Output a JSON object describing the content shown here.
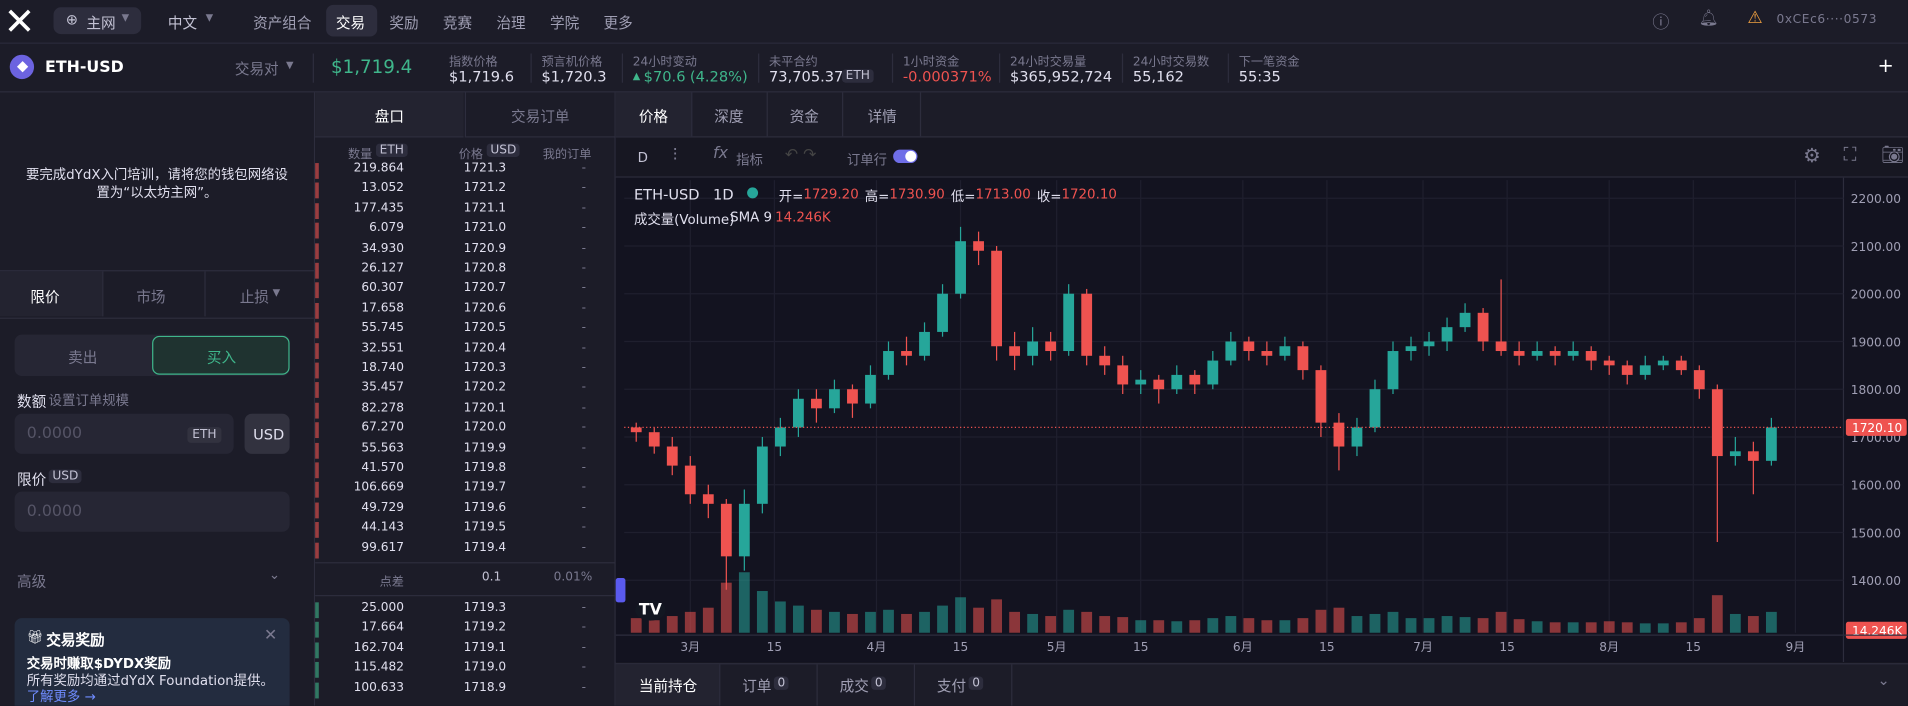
{
  "header": {
    "network": "主网",
    "language": "中文",
    "nav": [
      "资产组合",
      "交易",
      "奖励",
      "竞赛",
      "治理",
      "学院",
      "更多"
    ],
    "address": "0xCEc6····0573"
  },
  "market": {
    "symbol": "ETH-USD",
    "pair_label": "交易对",
    "price": "$1,719.4",
    "stats": [
      {
        "label": "指数价格",
        "value": "$1,719.6"
      },
      {
        "label": "预言机价格",
        "value": "$1,720.3"
      },
      {
        "label": "24小时变动",
        "value": "$70.6",
        "extra": "(4.28%)"
      },
      {
        "label": "未平合约",
        "value": "73,705.37",
        "unit": "ETH"
      },
      {
        "label": "1小时资金",
        "value": "-0.000371%"
      },
      {
        "label": "24小时交易量",
        "value": "$365,952,724"
      },
      {
        "label": "24小时交易数",
        "value": "55,162"
      },
      {
        "label": "下一笔资金",
        "value": "55:35"
      }
    ]
  },
  "order_form": {
    "notice": "要完成dYdX入门培训，请将您的钱包网络设置为“以太坊主网”。",
    "tabs": [
      "限价",
      "市场",
      "止损"
    ],
    "sides": [
      "卖出",
      "买入"
    ],
    "amount_label": "数额",
    "amount_hint": "设置订单规模",
    "amount_placeholder": "0.0000",
    "amount_unit": "ETH",
    "unit_toggle": "USD",
    "limit_label": "限价",
    "limit_unit": "USD",
    "limit_placeholder": "0.0000",
    "advanced": "高级",
    "reward": {
      "title": "交易奖励",
      "headline": "交易时赚取$DYDX奖励",
      "body": "所有奖励均通过dYdX Foundation提供。",
      "link": "了解更多 →"
    }
  },
  "orderbook": {
    "tabs": [
      "盘口",
      "交易订单"
    ],
    "size_label": "数量",
    "size_unit": "ETH",
    "price_label": "价格",
    "price_unit": "USD",
    "mine_label": "我的订单",
    "empty_mark": "-",
    "asks": [
      [
        "219.864",
        "1721.3"
      ],
      [
        "13.052",
        "1721.2"
      ],
      [
        "177.435",
        "1721.1"
      ],
      [
        "6.079",
        "1721.0"
      ],
      [
        "34.930",
        "1720.9"
      ],
      [
        "26.127",
        "1720.8"
      ],
      [
        "60.307",
        "1720.7"
      ],
      [
        "17.658",
        "1720.6"
      ],
      [
        "55.745",
        "1720.5"
      ],
      [
        "32.551",
        "1720.4"
      ],
      [
        "18.740",
        "1720.3"
      ],
      [
        "35.457",
        "1720.2"
      ],
      [
        "82.278",
        "1720.1"
      ],
      [
        "67.270",
        "1720.0"
      ],
      [
        "55.563",
        "1719.9"
      ],
      [
        "41.570",
        "1719.8"
      ],
      [
        "106.669",
        "1719.7"
      ],
      [
        "49.729",
        "1719.6"
      ],
      [
        "44.143",
        "1719.5"
      ],
      [
        "99.617",
        "1719.4"
      ]
    ],
    "spread_label": "点差",
    "spread": "0.1",
    "spread_pct": "0.01%",
    "bids": [
      [
        "25.000",
        "1719.3"
      ],
      [
        "17.664",
        "1719.2"
      ],
      [
        "162.704",
        "1719.1"
      ],
      [
        "115.482",
        "1719.0"
      ],
      [
        "100.633",
        "1718.9"
      ]
    ]
  },
  "chart_tabs": [
    "价格",
    "深度",
    "资金",
    "详情"
  ],
  "toolbar": {
    "interval": "D",
    "indicators": "指标",
    "order_lines": "订单行"
  },
  "price_chart": {
    "type": "candlestick",
    "symbol": "ETH-USD",
    "interval": "1D",
    "legend": [
      {
        "label": "开=",
        "value": "1729.20"
      },
      {
        "label": "高=",
        "value": "1730.90"
      },
      {
        "label": "低=",
        "value": "1713.00"
      },
      {
        "label": "收=",
        "value": "1720.10"
      }
    ],
    "volume_label": "成交量(Volume)",
    "sma_label": "SMA 9",
    "sma_value": "14.246K",
    "last_price": {
      "value": 1720.1,
      "label": "1720.10"
    },
    "volume_tag": "14.246K",
    "up_color": "#26a69a",
    "down_color": "#ef5350",
    "ylim": [
      1290,
      2238
    ],
    "xlim": [
      -2,
      201
    ],
    "volume_max": 70,
    "yticks": [
      {
        "value": 2200,
        "label": "2200.00"
      },
      {
        "value": 2100,
        "label": "2100.00"
      },
      {
        "value": 2000,
        "label": "2000.00"
      },
      {
        "value": 1900,
        "label": "1900.00"
      },
      {
        "value": 1800,
        "label": "1800.00"
      },
      {
        "value": 1700,
        "label": "1700.00"
      },
      {
        "value": 1600,
        "label": "1600.00"
      },
      {
        "value": 1500,
        "label": "1500.00"
      },
      {
        "value": 1400,
        "label": "1400.00"
      }
    ],
    "xticks": [
      {
        "value": 9,
        "label": "3月"
      },
      {
        "value": 23,
        "label": "15"
      },
      {
        "value": 40,
        "label": "4月"
      },
      {
        "value": 54,
        "label": "15"
      },
      {
        "value": 70,
        "label": "5月"
      },
      {
        "value": 84,
        "label": "15"
      },
      {
        "value": 101,
        "label": "6月"
      },
      {
        "value": 115,
        "label": "15"
      },
      {
        "value": 131,
        "label": "7月"
      },
      {
        "value": 145,
        "label": "15"
      },
      {
        "value": 162,
        "label": "8月"
      },
      {
        "value": 176,
        "label": "15"
      },
      {
        "value": 193,
        "label": "9月"
      }
    ],
    "candles": [
      {
        "x": 0,
        "ohlc": [
          1720,
          1730,
          1690,
          1710
        ],
        "volume": 14
      },
      {
        "x": 3,
        "ohlc": [
          1710,
          1720,
          1665,
          1680
        ],
        "volume": 12
      },
      {
        "x": 6,
        "ohlc": [
          1680,
          1700,
          1620,
          1640
        ],
        "volume": 16
      },
      {
        "x": 9,
        "ohlc": [
          1640,
          1660,
          1560,
          1580
        ],
        "volume": 20
      },
      {
        "x": 12,
        "ohlc": [
          1580,
          1600,
          1530,
          1560
        ],
        "volume": 24
      },
      {
        "x": 15,
        "ohlc": [
          1560,
          1570,
          1380,
          1450
        ],
        "volume": 48
      },
      {
        "x": 18,
        "ohlc": [
          1450,
          1590,
          1420,
          1560
        ],
        "volume": 58
      },
      {
        "x": 21,
        "ohlc": [
          1560,
          1700,
          1540,
          1680
        ],
        "volume": 40
      },
      {
        "x": 24,
        "ohlc": [
          1680,
          1740,
          1660,
          1720
        ],
        "volume": 30
      },
      {
        "x": 27,
        "ohlc": [
          1720,
          1800,
          1700,
          1780
        ],
        "volume": 26
      },
      {
        "x": 30,
        "ohlc": [
          1780,
          1800,
          1730,
          1760
        ],
        "volume": 22
      },
      {
        "x": 33,
        "ohlc": [
          1760,
          1820,
          1750,
          1800
        ],
        "volume": 20
      },
      {
        "x": 36,
        "ohlc": [
          1800,
          1810,
          1740,
          1770
        ],
        "volume": 18
      },
      {
        "x": 39,
        "ohlc": [
          1770,
          1850,
          1760,
          1830
        ],
        "volume": 20
      },
      {
        "x": 42,
        "ohlc": [
          1830,
          1900,
          1820,
          1880
        ],
        "volume": 22
      },
      {
        "x": 45,
        "ohlc": [
          1880,
          1910,
          1850,
          1870
        ],
        "volume": 18
      },
      {
        "x": 48,
        "ohlc": [
          1870,
          1940,
          1860,
          1920
        ],
        "volume": 20
      },
      {
        "x": 51,
        "ohlc": [
          1920,
          2020,
          1910,
          2000
        ],
        "volume": 26
      },
      {
        "x": 54,
        "ohlc": [
          2000,
          2140,
          1990,
          2110
        ],
        "volume": 34
      },
      {
        "x": 57,
        "ohlc": [
          2110,
          2130,
          2060,
          2090
        ],
        "volume": 24
      },
      {
        "x": 60,
        "ohlc": [
          2090,
          2100,
          1860,
          1890
        ],
        "volume": 32
      },
      {
        "x": 63,
        "ohlc": [
          1890,
          1920,
          1840,
          1870
        ],
        "volume": 20
      },
      {
        "x": 66,
        "ohlc": [
          1870,
          1930,
          1850,
          1900
        ],
        "volume": 18
      },
      {
        "x": 69,
        "ohlc": [
          1900,
          1920,
          1860,
          1880
        ],
        "volume": 16
      },
      {
        "x": 72,
        "ohlc": [
          1880,
          2020,
          1870,
          2000
        ],
        "volume": 22
      },
      {
        "x": 75,
        "ohlc": [
          2000,
          2010,
          1850,
          1870
        ],
        "volume": 20
      },
      {
        "x": 78,
        "ohlc": [
          1870,
          1890,
          1830,
          1850
        ],
        "volume": 16
      },
      {
        "x": 81,
        "ohlc": [
          1850,
          1870,
          1790,
          1810
        ],
        "volume": 15
      },
      {
        "x": 84,
        "ohlc": [
          1810,
          1840,
          1790,
          1820
        ],
        "volume": 12
      },
      {
        "x": 87,
        "ohlc": [
          1820,
          1830,
          1770,
          1800
        ],
        "volume": 12
      },
      {
        "x": 90,
        "ohlc": [
          1800,
          1850,
          1790,
          1830
        ],
        "volume": 11
      },
      {
        "x": 93,
        "ohlc": [
          1830,
          1840,
          1790,
          1810
        ],
        "volume": 12
      },
      {
        "x": 96,
        "ohlc": [
          1810,
          1880,
          1800,
          1860
        ],
        "volume": 14
      },
      {
        "x": 99,
        "ohlc": [
          1860,
          1920,
          1850,
          1900
        ],
        "volume": 16
      },
      {
        "x": 102,
        "ohlc": [
          1900,
          1910,
          1860,
          1880
        ],
        "volume": 14
      },
      {
        "x": 105,
        "ohlc": [
          1880,
          1900,
          1850,
          1870
        ],
        "volume": 12
      },
      {
        "x": 108,
        "ohlc": [
          1870,
          1910,
          1860,
          1890
        ],
        "volume": 12
      },
      {
        "x": 111,
        "ohlc": [
          1890,
          1900,
          1820,
          1840
        ],
        "volume": 14
      },
      {
        "x": 114,
        "ohlc": [
          1840,
          1850,
          1700,
          1730
        ],
        "volume": 22
      },
      {
        "x": 117,
        "ohlc": [
          1730,
          1750,
          1630,
          1680
        ],
        "volume": 24
      },
      {
        "x": 120,
        "ohlc": [
          1680,
          1740,
          1660,
          1720
        ],
        "volume": 16
      },
      {
        "x": 123,
        "ohlc": [
          1720,
          1820,
          1710,
          1800
        ],
        "volume": 18
      },
      {
        "x": 126,
        "ohlc": [
          1800,
          1900,
          1790,
          1880
        ],
        "volume": 20
      },
      {
        "x": 129,
        "ohlc": [
          1880,
          1910,
          1860,
          1890
        ],
        "volume": 14
      },
      {
        "x": 132,
        "ohlc": [
          1890,
          1920,
          1870,
          1900
        ],
        "volume": 14
      },
      {
        "x": 135,
        "ohlc": [
          1900,
          1950,
          1880,
          1930
        ],
        "volume": 16
      },
      {
        "x": 138,
        "ohlc": [
          1930,
          1980,
          1920,
          1960
        ],
        "volume": 15
      },
      {
        "x": 141,
        "ohlc": [
          1960,
          1970,
          1880,
          1900
        ],
        "volume": 14
      },
      {
        "x": 144,
        "ohlc": [
          1900,
          2030,
          1870,
          1880
        ],
        "volume": 20
      },
      {
        "x": 147,
        "ohlc": [
          1880,
          1900,
          1850,
          1870
        ],
        "volume": 13
      },
      {
        "x": 150,
        "ohlc": [
          1870,
          1900,
          1860,
          1880
        ],
        "volume": 11
      },
      {
        "x": 153,
        "ohlc": [
          1880,
          1890,
          1850,
          1870
        ],
        "volume": 10
      },
      {
        "x": 156,
        "ohlc": [
          1870,
          1900,
          1860,
          1880
        ],
        "volume": 10
      },
      {
        "x": 159,
        "ohlc": [
          1880,
          1890,
          1840,
          1860
        ],
        "volume": 10
      },
      {
        "x": 162,
        "ohlc": [
          1860,
          1870,
          1830,
          1850
        ],
        "volume": 11
      },
      {
        "x": 165,
        "ohlc": [
          1850,
          1860,
          1810,
          1830
        ],
        "volume": 10
      },
      {
        "x": 168,
        "ohlc": [
          1830,
          1870,
          1820,
          1850
        ],
        "volume": 9
      },
      {
        "x": 171,
        "ohlc": [
          1850,
          1870,
          1840,
          1860
        ],
        "volume": 9
      },
      {
        "x": 174,
        "ohlc": [
          1860,
          1870,
          1830,
          1840
        ],
        "volume": 10
      },
      {
        "x": 177,
        "ohlc": [
          1840,
          1850,
          1780,
          1800
        ],
        "volume": 14
      },
      {
        "x": 180,
        "ohlc": [
          1800,
          1810,
          1480,
          1660
        ],
        "volume": 36
      },
      {
        "x": 183,
        "ohlc": [
          1660,
          1700,
          1640,
          1670
        ],
        "volume": 18
      },
      {
        "x": 186,
        "ohlc": [
          1670,
          1690,
          1580,
          1650
        ],
        "volume": 16
      },
      {
        "x": 189,
        "ohlc": [
          1650,
          1740,
          1640,
          1720
        ],
        "volume": 20
      }
    ]
  },
  "bottom_tabs": [
    {
      "label": "当前持仓"
    },
    {
      "label": "订单",
      "count": "0"
    },
    {
      "label": "成交",
      "count": "0"
    },
    {
      "label": "支付",
      "count": "0"
    }
  ]
}
